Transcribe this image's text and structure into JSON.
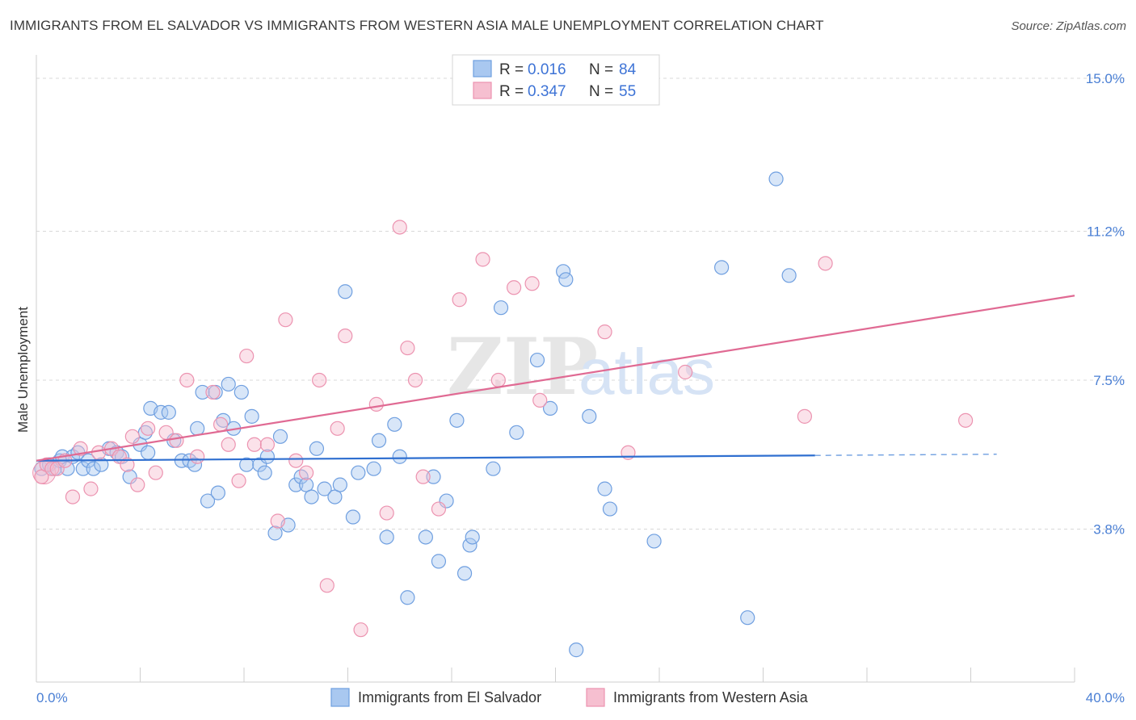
{
  "title": "IMMIGRANTS FROM EL SALVADOR VS IMMIGRANTS FROM WESTERN ASIA MALE UNEMPLOYMENT CORRELATION CHART",
  "source": "Source: ZipAtlas.com",
  "watermark": {
    "zip": "ZIP",
    "atlas": "atlas"
  },
  "colors": {
    "blue_fill": "#a9c8f0",
    "blue_stroke": "#6f9fe0",
    "blue_line": "#2f6fd0",
    "pink_fill": "#f6bfd0",
    "pink_stroke": "#ec93b0",
    "pink_line": "#e06a93",
    "grid": "#d8d8d8",
    "axis_label": "#4a7fd4"
  },
  "legend": {
    "rows": [
      {
        "r_label": "R =",
        "r_value": "0.016",
        "n_label": "N =",
        "n_value": "84"
      },
      {
        "r_label": "R =",
        "r_value": "0.347",
        "n_label": "N =",
        "n_value": "55"
      }
    ]
  },
  "chart_data": {
    "type": "scatter",
    "title": "IMMIGRANTS FROM EL SALVADOR VS IMMIGRANTS FROM WESTERN ASIA MALE UNEMPLOYMENT CORRELATION CHART",
    "xlabel": "",
    "ylabel": "Male Unemployment",
    "xlim": [
      0,
      40
    ],
    "ylim": [
      0,
      15.4
    ],
    "x_tick_labels": [
      "0.0%",
      "40.0%"
    ],
    "y_ticks": [
      3.8,
      7.5,
      11.2,
      15.0
    ],
    "y_tick_labels": [
      "3.8%",
      "7.5%",
      "11.2%",
      "15.0%"
    ],
    "legend_position": "bottom-center",
    "series": [
      {
        "name": "Immigrants from El Salvador",
        "r": 0.016,
        "n": 84,
        "trend": {
          "x0": 0,
          "y0": 5.5,
          "x1": 30,
          "y1": 5.63,
          "dashed_to_x": 37,
          "dashed_to_y": 5.66
        },
        "points": [
          [
            0.2,
            5.3
          ],
          [
            0.5,
            5.4
          ],
          [
            0.7,
            5.3
          ],
          [
            0.9,
            5.5
          ],
          [
            1.0,
            5.6
          ],
          [
            1.2,
            5.3
          ],
          [
            1.4,
            5.6
          ],
          [
            1.6,
            5.7
          ],
          [
            1.8,
            5.3
          ],
          [
            2.0,
            5.5
          ],
          [
            2.2,
            5.3
          ],
          [
            2.5,
            5.4
          ],
          [
            2.8,
            5.8
          ],
          [
            3.1,
            5.7
          ],
          [
            3.3,
            5.6
          ],
          [
            3.6,
            5.1
          ],
          [
            4.0,
            5.9
          ],
          [
            4.2,
            6.2
          ],
          [
            4.3,
            5.7
          ],
          [
            4.4,
            6.8
          ],
          [
            4.8,
            6.7
          ],
          [
            5.1,
            6.7
          ],
          [
            5.3,
            6.0
          ],
          [
            5.6,
            5.5
          ],
          [
            5.9,
            5.5
          ],
          [
            6.1,
            5.4
          ],
          [
            6.2,
            6.3
          ],
          [
            6.4,
            7.2
          ],
          [
            6.6,
            4.5
          ],
          [
            6.9,
            7.2
          ],
          [
            7.0,
            4.7
          ],
          [
            7.2,
            6.5
          ],
          [
            7.4,
            7.4
          ],
          [
            7.6,
            6.3
          ],
          [
            7.9,
            7.2
          ],
          [
            8.1,
            5.4
          ],
          [
            8.3,
            6.6
          ],
          [
            8.6,
            5.4
          ],
          [
            8.8,
            5.2
          ],
          [
            8.9,
            5.6
          ],
          [
            9.2,
            3.7
          ],
          [
            9.4,
            6.1
          ],
          [
            9.7,
            3.9
          ],
          [
            10.0,
            4.9
          ],
          [
            10.2,
            5.1
          ],
          [
            10.4,
            4.9
          ],
          [
            10.6,
            4.6
          ],
          [
            10.8,
            5.8
          ],
          [
            11.1,
            4.8
          ],
          [
            11.5,
            4.6
          ],
          [
            11.7,
            4.9
          ],
          [
            11.9,
            9.7
          ],
          [
            12.2,
            4.1
          ],
          [
            12.4,
            5.2
          ],
          [
            13.0,
            5.3
          ],
          [
            13.2,
            6.0
          ],
          [
            13.5,
            3.6
          ],
          [
            13.8,
            6.4
          ],
          [
            14.0,
            5.6
          ],
          [
            14.3,
            2.1
          ],
          [
            15.0,
            3.6
          ],
          [
            15.3,
            5.1
          ],
          [
            15.5,
            3.0
          ],
          [
            15.8,
            4.5
          ],
          [
            16.2,
            6.5
          ],
          [
            16.5,
            2.7
          ],
          [
            16.7,
            3.4
          ],
          [
            16.8,
            3.6
          ],
          [
            17.6,
            5.3
          ],
          [
            17.9,
            9.3
          ],
          [
            18.5,
            6.2
          ],
          [
            19.3,
            8.0
          ],
          [
            19.8,
            6.8
          ],
          [
            20.3,
            10.2
          ],
          [
            20.4,
            10.0
          ],
          [
            20.8,
            0.8
          ],
          [
            21.3,
            6.6
          ],
          [
            21.9,
            4.8
          ],
          [
            22.1,
            4.3
          ],
          [
            23.8,
            3.5
          ],
          [
            26.4,
            10.3
          ],
          [
            27.4,
            1.6
          ],
          [
            29.0,
            10.1
          ],
          [
            28.5,
            12.5
          ]
        ]
      },
      {
        "name": "Immigrants from Western Asia",
        "r": 0.347,
        "n": 55,
        "trend": {
          "x0": 0,
          "y0": 5.5,
          "x1": 40,
          "y1": 9.6
        },
        "points": [
          [
            0.2,
            5.1
          ],
          [
            0.4,
            5.4
          ],
          [
            0.6,
            5.3
          ],
          [
            0.8,
            5.3
          ],
          [
            1.1,
            5.5
          ],
          [
            1.4,
            4.6
          ],
          [
            1.7,
            5.8
          ],
          [
            2.1,
            4.8
          ],
          [
            2.4,
            5.7
          ],
          [
            2.9,
            5.8
          ],
          [
            3.2,
            5.6
          ],
          [
            3.5,
            5.4
          ],
          [
            3.7,
            6.1
          ],
          [
            3.9,
            4.9
          ],
          [
            4.3,
            6.3
          ],
          [
            4.6,
            5.2
          ],
          [
            5.0,
            6.2
          ],
          [
            5.4,
            6.0
          ],
          [
            5.8,
            7.5
          ],
          [
            6.2,
            5.6
          ],
          [
            6.8,
            7.2
          ],
          [
            7.1,
            6.4
          ],
          [
            7.4,
            5.9
          ],
          [
            7.8,
            5.0
          ],
          [
            8.1,
            8.1
          ],
          [
            8.4,
            5.9
          ],
          [
            8.9,
            5.9
          ],
          [
            9.3,
            4.0
          ],
          [
            9.6,
            9.0
          ],
          [
            10.0,
            5.5
          ],
          [
            10.4,
            5.2
          ],
          [
            10.9,
            7.5
          ],
          [
            11.2,
            2.4
          ],
          [
            11.6,
            6.3
          ],
          [
            11.9,
            8.6
          ],
          [
            12.5,
            1.3
          ],
          [
            13.1,
            6.9
          ],
          [
            13.5,
            4.2
          ],
          [
            14.0,
            11.3
          ],
          [
            14.3,
            8.3
          ],
          [
            14.6,
            7.5
          ],
          [
            14.9,
            5.1
          ],
          [
            15.5,
            4.3
          ],
          [
            16.3,
            9.5
          ],
          [
            17.2,
            10.5
          ],
          [
            17.8,
            7.5
          ],
          [
            18.4,
            9.8
          ],
          [
            19.1,
            9.9
          ],
          [
            19.4,
            7.0
          ],
          [
            21.9,
            8.7
          ],
          [
            22.8,
            5.7
          ],
          [
            25.0,
            7.7
          ],
          [
            29.6,
            6.6
          ],
          [
            30.4,
            10.4
          ],
          [
            35.8,
            6.5
          ]
        ]
      }
    ]
  },
  "bottom_legend": [
    {
      "label": "Immigrants from El Salvador"
    },
    {
      "label": "Immigrants from Western Asia"
    }
  ]
}
